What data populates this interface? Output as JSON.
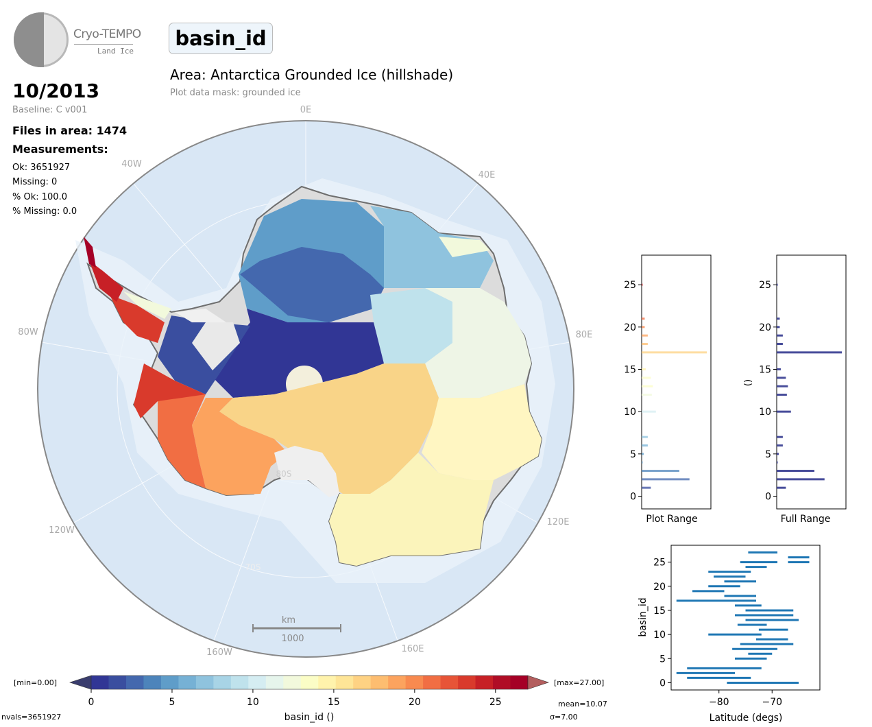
{
  "logo": {
    "title": "Cryo-TEMPO",
    "subtitle": "Land Ice"
  },
  "parameter": "basin_id",
  "area_title": "Area: Antarctica Grounded Ice (hillshade)",
  "mask_text": "Plot data mask: grounded ice",
  "date": "10/2013",
  "baseline": "Baseline: C v001",
  "files": "Files in area: 1474",
  "measurements_label": "Measurements:",
  "stats": [
    "Ok: 3651927",
    "Missing: 0",
    "% Ok: 100.0",
    "% Missing: 0.0"
  ],
  "map": {
    "lon_labels": [
      "0E",
      "40E",
      "80E",
      "120E",
      "160E",
      "160W",
      "120W",
      "80W",
      "40W"
    ],
    "lat_labels": [
      "80S",
      "70S"
    ],
    "scale_unit": "km",
    "scale_value": "1000"
  },
  "colorbar": {
    "min_label": "[min=0.00]",
    "max_label": "[max=27.00]",
    "ticks": [
      "0",
      "5",
      "10",
      "15",
      "20",
      "25"
    ],
    "label": "basin_id ()",
    "nvals": "nvals=3651927",
    "mean": "mean=10.07",
    "sigma": "σ=7.00",
    "colors": [
      "#313695",
      "#3a4e9f",
      "#4468ae",
      "#4d84bb",
      "#5f9dc9",
      "#76b1d5",
      "#8fc3de",
      "#a8d4e6",
      "#bfe2ec",
      "#d5edf2",
      "#e6f5ec",
      "#f2f9dc",
      "#fbfdc6",
      "#fff3ac",
      "#fee597",
      "#fed283",
      "#fdbd70",
      "#fca35e",
      "#f88a4f",
      "#f16e43",
      "#e75437",
      "#d93a2c",
      "#c72026",
      "#b00d26",
      "#a50026"
    ]
  },
  "chart_data": [
    {
      "type": "bar",
      "title": "Plot Range",
      "orientation": "horizontal",
      "categories": [
        0,
        1,
        2,
        3,
        4,
        5,
        6,
        7,
        8,
        9,
        10,
        11,
        12,
        13,
        14,
        15,
        16,
        17,
        18,
        19,
        20,
        21,
        22,
        23,
        24,
        25,
        26,
        27
      ],
      "values": [
        0,
        9,
        47,
        37,
        1,
        2,
        6,
        6,
        0,
        0,
        14,
        0,
        10,
        11,
        9,
        4,
        0,
        64,
        6,
        6,
        3,
        3,
        0,
        0,
        0,
        1,
        0,
        0
      ],
      "ylim": [
        -1.5,
        28.5
      ],
      "yticks": [
        "0",
        "5",
        "10",
        "15",
        "20",
        "25"
      ]
    },
    {
      "type": "bar",
      "title": "Full Range",
      "ylabel": "()",
      "orientation": "horizontal",
      "categories": [
        0,
        1,
        2,
        3,
        4,
        5,
        6,
        7,
        8,
        9,
        10,
        11,
        12,
        13,
        14,
        15,
        16,
        17,
        18,
        19,
        20,
        21,
        22,
        23,
        24,
        25,
        26,
        27
      ],
      "values": [
        0,
        9,
        47,
        37,
        1,
        2,
        6,
        6,
        0,
        0,
        14,
        0,
        10,
        11,
        9,
        4,
        0,
        64,
        6,
        6,
        3,
        3,
        0,
        0,
        0,
        1,
        0,
        0
      ],
      "ylim": [
        -1.5,
        28.5
      ],
      "yticks": [
        "0",
        "5",
        "10",
        "15",
        "20",
        "25"
      ]
    },
    {
      "type": "scatter",
      "xlabel": "Latitude (degs)",
      "ylabel": "basin_id",
      "xticks": [
        "−80",
        "−70"
      ],
      "yticks": [
        "0",
        "5",
        "10",
        "15",
        "20",
        "25"
      ],
      "xlim": [
        -89,
        -61
      ],
      "ylim": [
        -1.5,
        28.5
      ],
      "segments": [
        {
          "y": 0,
          "x0": -78.5,
          "x1": -65
        },
        {
          "y": 1,
          "x0": -86,
          "x1": -74
        },
        {
          "y": 2,
          "x0": -88,
          "x1": -77
        },
        {
          "y": 3,
          "x0": -86,
          "x1": -72
        },
        {
          "y": 5,
          "x0": -77,
          "x1": -71
        },
        {
          "y": 6,
          "x0": -74.5,
          "x1": -70
        },
        {
          "y": 7,
          "x0": -77.5,
          "x1": -69
        },
        {
          "y": 8,
          "x0": -76,
          "x1": -66
        },
        {
          "y": 9,
          "x0": -73,
          "x1": -67
        },
        {
          "y": 10,
          "x0": -82,
          "x1": -72
        },
        {
          "y": 11,
          "x0": -72.5,
          "x1": -67
        },
        {
          "y": 12,
          "x0": -76.5,
          "x1": -71
        },
        {
          "y": 13,
          "x0": -75,
          "x1": -65
        },
        {
          "y": 14,
          "x0": -77,
          "x1": -66
        },
        {
          "y": 15,
          "x0": -75,
          "x1": -66
        },
        {
          "y": 16,
          "x0": -77,
          "x1": -72
        },
        {
          "y": 17,
          "x0": -88,
          "x1": -73
        },
        {
          "y": 18,
          "x0": -79,
          "x1": -73
        },
        {
          "y": 19,
          "x0": -85,
          "x1": -79
        },
        {
          "y": 20,
          "x0": -82,
          "x1": -76
        },
        {
          "y": 21,
          "x0": -79,
          "x1": -73
        },
        {
          "y": 22,
          "x0": -81,
          "x1": -75
        },
        {
          "y": 23,
          "x0": -82,
          "x1": -74
        },
        {
          "y": 24,
          "x0": -75,
          "x1": -71
        },
        {
          "y": 25,
          "x0": -76,
          "x1": -69
        },
        {
          "y": 25,
          "x0": -67,
          "x1": -63
        },
        {
          "y": 26,
          "x0": -67,
          "x1": -63
        },
        {
          "y": 27,
          "x0": -74.5,
          "x1": -69
        }
      ]
    }
  ]
}
